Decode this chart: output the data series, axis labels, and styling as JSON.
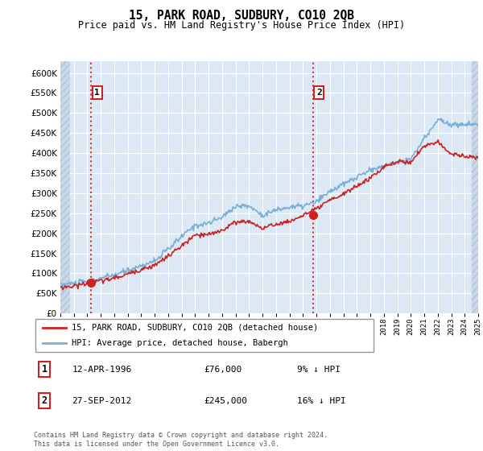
{
  "title": "15, PARK ROAD, SUDBURY, CO10 2QB",
  "subtitle": "Price paid vs. HM Land Registry's House Price Index (HPI)",
  "ylim": [
    0,
    620000
  ],
  "yticks": [
    0,
    50000,
    100000,
    150000,
    200000,
    250000,
    300000,
    350000,
    400000,
    450000,
    500000,
    550000,
    600000
  ],
  "hpi_color": "#7aaed6",
  "price_color": "#cc2222",
  "marker_color": "#cc2222",
  "sale1_x": 1996.28,
  "sale1_y": 76000,
  "sale2_x": 2012.74,
  "sale2_y": 245000,
  "legend_entry1": "15, PARK ROAD, SUDBURY, CO10 2QB (detached house)",
  "legend_entry2": "HPI: Average price, detached house, Babergh",
  "footer": "Contains HM Land Registry data © Crown copyright and database right 2024.\nThis data is licensed under the Open Government Licence v3.0.",
  "bg_color": "#dce9f5",
  "hatch_bg": "#c8d8e8",
  "grid_color": "#ffffff",
  "xmin": 1994,
  "xmax": 2025,
  "hpi_pts": [
    [
      1994,
      72000
    ],
    [
      1995,
      75000
    ],
    [
      1996,
      80000
    ],
    [
      1997,
      88000
    ],
    [
      1998,
      96000
    ],
    [
      1999,
      107000
    ],
    [
      2000,
      119000
    ],
    [
      2001,
      131000
    ],
    [
      2002,
      160000
    ],
    [
      2003,
      192000
    ],
    [
      2004,
      220000
    ],
    [
      2005,
      225000
    ],
    [
      2006,
      240000
    ],
    [
      2007,
      268000
    ],
    [
      2008,
      268000
    ],
    [
      2009,
      245000
    ],
    [
      2010,
      258000
    ],
    [
      2011,
      265000
    ],
    [
      2012,
      268000
    ],
    [
      2013,
      278000
    ],
    [
      2014,
      305000
    ],
    [
      2015,
      322000
    ],
    [
      2016,
      340000
    ],
    [
      2017,
      358000
    ],
    [
      2018,
      368000
    ],
    [
      2019,
      378000
    ],
    [
      2020,
      385000
    ],
    [
      2021,
      435000
    ],
    [
      2022,
      485000
    ],
    [
      2023,
      470000
    ],
    [
      2024,
      472000
    ],
    [
      2025,
      472000
    ]
  ],
  "price_pts": [
    [
      1994,
      65000
    ],
    [
      1995,
      68000
    ],
    [
      1996,
      76000
    ],
    [
      1997,
      81000
    ],
    [
      1998,
      88000
    ],
    [
      1999,
      98000
    ],
    [
      2000,
      110000
    ],
    [
      2001,
      120000
    ],
    [
      2002,
      143000
    ],
    [
      2003,
      168000
    ],
    [
      2004,
      195000
    ],
    [
      2005,
      196000
    ],
    [
      2006,
      208000
    ],
    [
      2007,
      228000
    ],
    [
      2008,
      230000
    ],
    [
      2009,
      212000
    ],
    [
      2010,
      223000
    ],
    [
      2011,
      229000
    ],
    [
      2012,
      245000
    ],
    [
      2013,
      260000
    ],
    [
      2014,
      282000
    ],
    [
      2015,
      298000
    ],
    [
      2016,
      318000
    ],
    [
      2017,
      338000
    ],
    [
      2018,
      365000
    ],
    [
      2019,
      378000
    ],
    [
      2020,
      378000
    ],
    [
      2021,
      418000
    ],
    [
      2022,
      428000
    ],
    [
      2023,
      398000
    ],
    [
      2024,
      392000
    ],
    [
      2025,
      388000
    ]
  ]
}
